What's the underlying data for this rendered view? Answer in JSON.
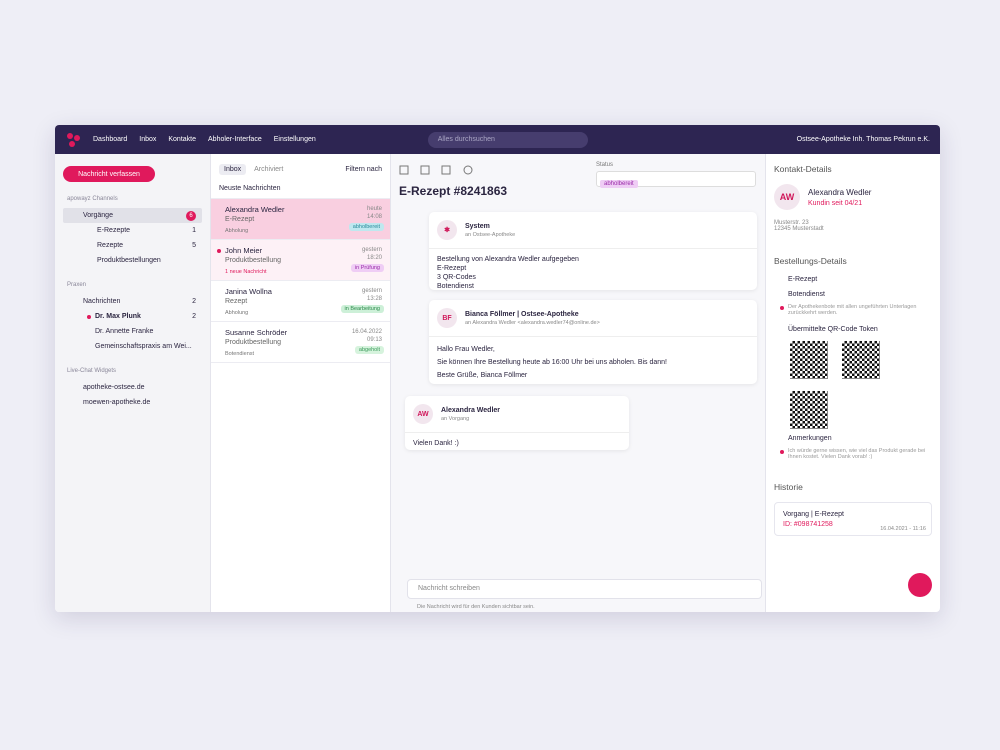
{
  "nav": {
    "items": [
      "Dashboard",
      "Inbox",
      "Kontakte",
      "Abholer-Interface",
      "Einstellungen"
    ],
    "search": "Alles durchsuchen",
    "account": "Ostsee-Apotheke Inh. Thomas Pekrun e.K."
  },
  "sidebar": {
    "compose": "Nachricht verfassen",
    "channels_heading": "apowayz Channels",
    "vorgaenge": {
      "label": "Vorgänge",
      "count": "6"
    },
    "sub": [
      {
        "label": "E-Rezepte",
        "count": "1"
      },
      {
        "label": "Rezepte",
        "count": "5"
      },
      {
        "label": "Produktbestellungen"
      }
    ],
    "praxen_heading": "Praxen",
    "nachrichten": {
      "label": "Nachrichten",
      "count": "2"
    },
    "praxen": [
      {
        "label": "Dr. Max Plunk",
        "count": "2"
      },
      {
        "label": "Dr. Annette Franke"
      },
      {
        "label": "Gemeinschaftspraxis am Wei..."
      }
    ],
    "widgets_heading": "Live-Chat Widgets",
    "widgets": [
      "apotheke-ostsee.de",
      "moewen-apotheke.de"
    ]
  },
  "list": {
    "tabs": [
      "Inbox",
      "Archiviert"
    ],
    "filter": "Filtern nach",
    "sort": "Neuste Nachrichten",
    "items": [
      {
        "name": "Alexandra Wedler",
        "type": "E-Rezept",
        "note": "Abholung",
        "date": "heute",
        "time": "14:08",
        "status": "abholbereit"
      },
      {
        "name": "John Meier",
        "type": "Produktbestellung",
        "note": "1 neue Nachricht",
        "date": "gestern",
        "time": "18:20",
        "status": "in Prüfung"
      },
      {
        "name": "Janina Wollna",
        "type": "Rezept",
        "note": "Abholung",
        "date": "gestern",
        "time": "13:28",
        "status": "in Bearbeitung"
      },
      {
        "name": "Susanne Schröder",
        "type": "Produktbestellung",
        "note": "Botendienst",
        "date": "16.04.2022",
        "time": "09:13",
        "status": "abgeholt"
      }
    ]
  },
  "main": {
    "title": "E-Rezept #8241863",
    "status_label": "Status",
    "status": "abholbereit",
    "messages": [
      {
        "avatar": "",
        "sender": "System",
        "to": "an Ostsee-Apotheke",
        "lines": [
          "Bestellung von Alexandra Wedler aufgegeben",
          "E-Rezept",
          "3 QR-Codes",
          "Botendienst"
        ]
      },
      {
        "avatar": "BF",
        "sender": "Bianca Föllmer | Ostsee-Apotheke",
        "to": "an Alexandra Wedler <alexandra.wedler74@online.de>",
        "lines": [
          "Hallo Frau Wedler,",
          "Sie können Ihre Bestellung heute ab 16:00 Uhr bei uns abholen. Bis dann!",
          "Beste Grüße, Bianca Föllmer"
        ]
      },
      {
        "avatar": "AW",
        "sender": "Alexandra Wedler",
        "to": "an Vorgang",
        "lines": [
          "Vielen Dank! :)"
        ]
      }
    ],
    "input": "Nachricht schreiben",
    "hint": "Die Nachricht wird für den Kunden sichtbar sein."
  },
  "right": {
    "contact_heading": "Kontakt-Details",
    "avatar": "AW",
    "name": "Alexandra Wedler",
    "since": "Kundin seit 04/21",
    "street": "Musterstr. 23",
    "city": "12345 Musterstadt",
    "order_heading": "Bestellungs-Details",
    "order_type": "E-Rezept",
    "delivery": "Botendienst",
    "delivery_note": "Der Apothekenbote mit allen ungeführten Unterlagen zurückkehrt werden.",
    "qr_heading": "Übermittelte QR-Code Token",
    "notes_heading": "Anmerkungen",
    "note": "Ich würde gerne wissen, wie viel das Produkt gerade bei Ihnen kostet. Vielen Dank vorab! :)",
    "history_heading": "Historie",
    "history": {
      "title": "Vorgang | E-Rezept",
      "id": "ID: #098741258",
      "date": "16.04.2021 - 11:16"
    }
  }
}
